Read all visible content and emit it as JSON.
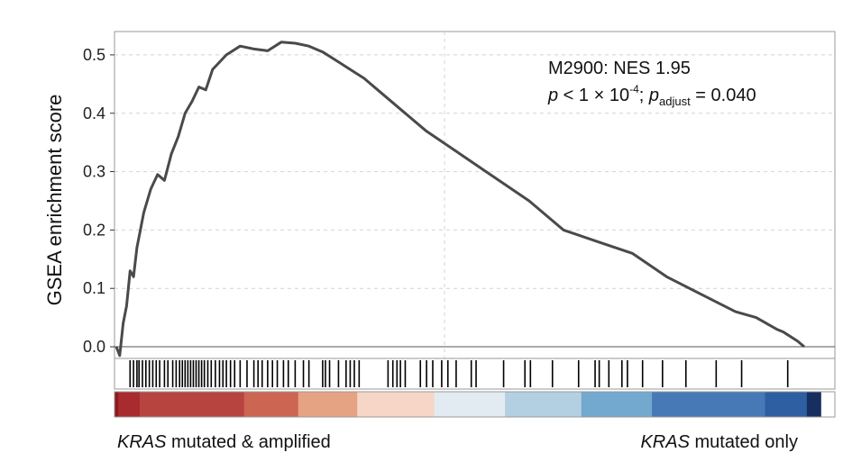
{
  "chart_data": {
    "type": "line",
    "ylabel": "GSEA enrichment score",
    "ylim": [
      -0.02,
      0.54
    ],
    "yticks": [
      "0.0",
      "0.1",
      "0.2",
      "0.3",
      "0.4",
      "0.5"
    ],
    "grid": true,
    "annotation": {
      "line1": "M2900: NES 1.95",
      "p_symbol": "p",
      "p_text": " < 1 × 10",
      "p_exp": "-4",
      "sep": "; ",
      "padj_symbol": "p",
      "padj_sub": "adjust",
      "padj_value": " = 0.040"
    },
    "series": [
      {
        "color": "#4a4a4a",
        "x": [
          0,
          0.5,
          1,
          1.5,
          2,
          2.5,
          3,
          3.5,
          4,
          5,
          6,
          7,
          8,
          9,
          10,
          11,
          12,
          13,
          14,
          16,
          18,
          20,
          22,
          24,
          26,
          28,
          30,
          32,
          34,
          36,
          38,
          40,
          42,
          45,
          50,
          55,
          60,
          65,
          70,
          75,
          80,
          85,
          90,
          93,
          96,
          97,
          99,
          100
        ],
        "y": [
          0.0,
          -0.015,
          0.04,
          0.07,
          0.13,
          0.12,
          0.17,
          0.2,
          0.23,
          0.27,
          0.295,
          0.285,
          0.33,
          0.36,
          0.4,
          0.42,
          0.445,
          0.44,
          0.475,
          0.5,
          0.515,
          0.51,
          0.507,
          0.522,
          0.52,
          0.515,
          0.505,
          0.49,
          0.475,
          0.46,
          0.44,
          0.42,
          0.4,
          0.37,
          0.33,
          0.29,
          0.25,
          0.2,
          0.18,
          0.16,
          0.12,
          0.09,
          0.06,
          0.05,
          0.03,
          0.025,
          0.01,
          0.0
        ]
      }
    ],
    "hits": [
      2,
      2.5,
      3,
      3.3,
      3.8,
      4.3,
      4.8,
      5.3,
      5.8,
      6.3,
      7,
      7.5,
      8.2,
      8.7,
      9.2,
      9.6,
      10,
      10.4,
      10.8,
      11.2,
      11.6,
      12,
      12.4,
      12.8,
      13.3,
      13.8,
      14.4,
      15,
      15.5,
      16,
      16.6,
      17.2,
      18,
      19,
      20,
      20.6,
      21.2,
      22,
      22.7,
      23.4,
      24.3,
      25,
      26,
      27.2,
      28,
      30,
      30.4,
      31,
      32.3,
      33.4,
      34,
      34.6,
      35.3,
      39.5,
      40.2,
      40.8,
      41.3,
      42,
      44.2,
      45.1,
      46,
      47.3,
      48.2,
      49.4,
      51.6,
      52.3,
      56.3,
      59.4,
      60.2,
      63.4,
      67.2,
      69.6,
      70.2,
      71.6,
      73.5,
      74.3,
      76.5,
      79.4,
      82.8,
      87.2,
      90.9,
      97.6
    ],
    "heatbar": {
      "colors": [
        "#8b1a1a",
        "#a82b2e",
        "#b84440",
        "#cc6652",
        "#e6a384",
        "#f6d6c6",
        "#e2ebf2",
        "#b3d0e2",
        "#73a8cf",
        "#4779b6",
        "#2f5fa3",
        "#162f60",
        "#ffffff"
      ],
      "fractions": [
        0.005,
        0.03,
        0.145,
        0.075,
        0.082,
        0.107,
        0.098,
        0.106,
        0.098,
        0.157,
        0.058,
        0.02,
        0.047
      ]
    },
    "footer": {
      "left_gene": "KRAS",
      "left_rest": " mutated & amplified",
      "right_gene": "KRAS",
      "right_rest": " mutated only"
    }
  }
}
